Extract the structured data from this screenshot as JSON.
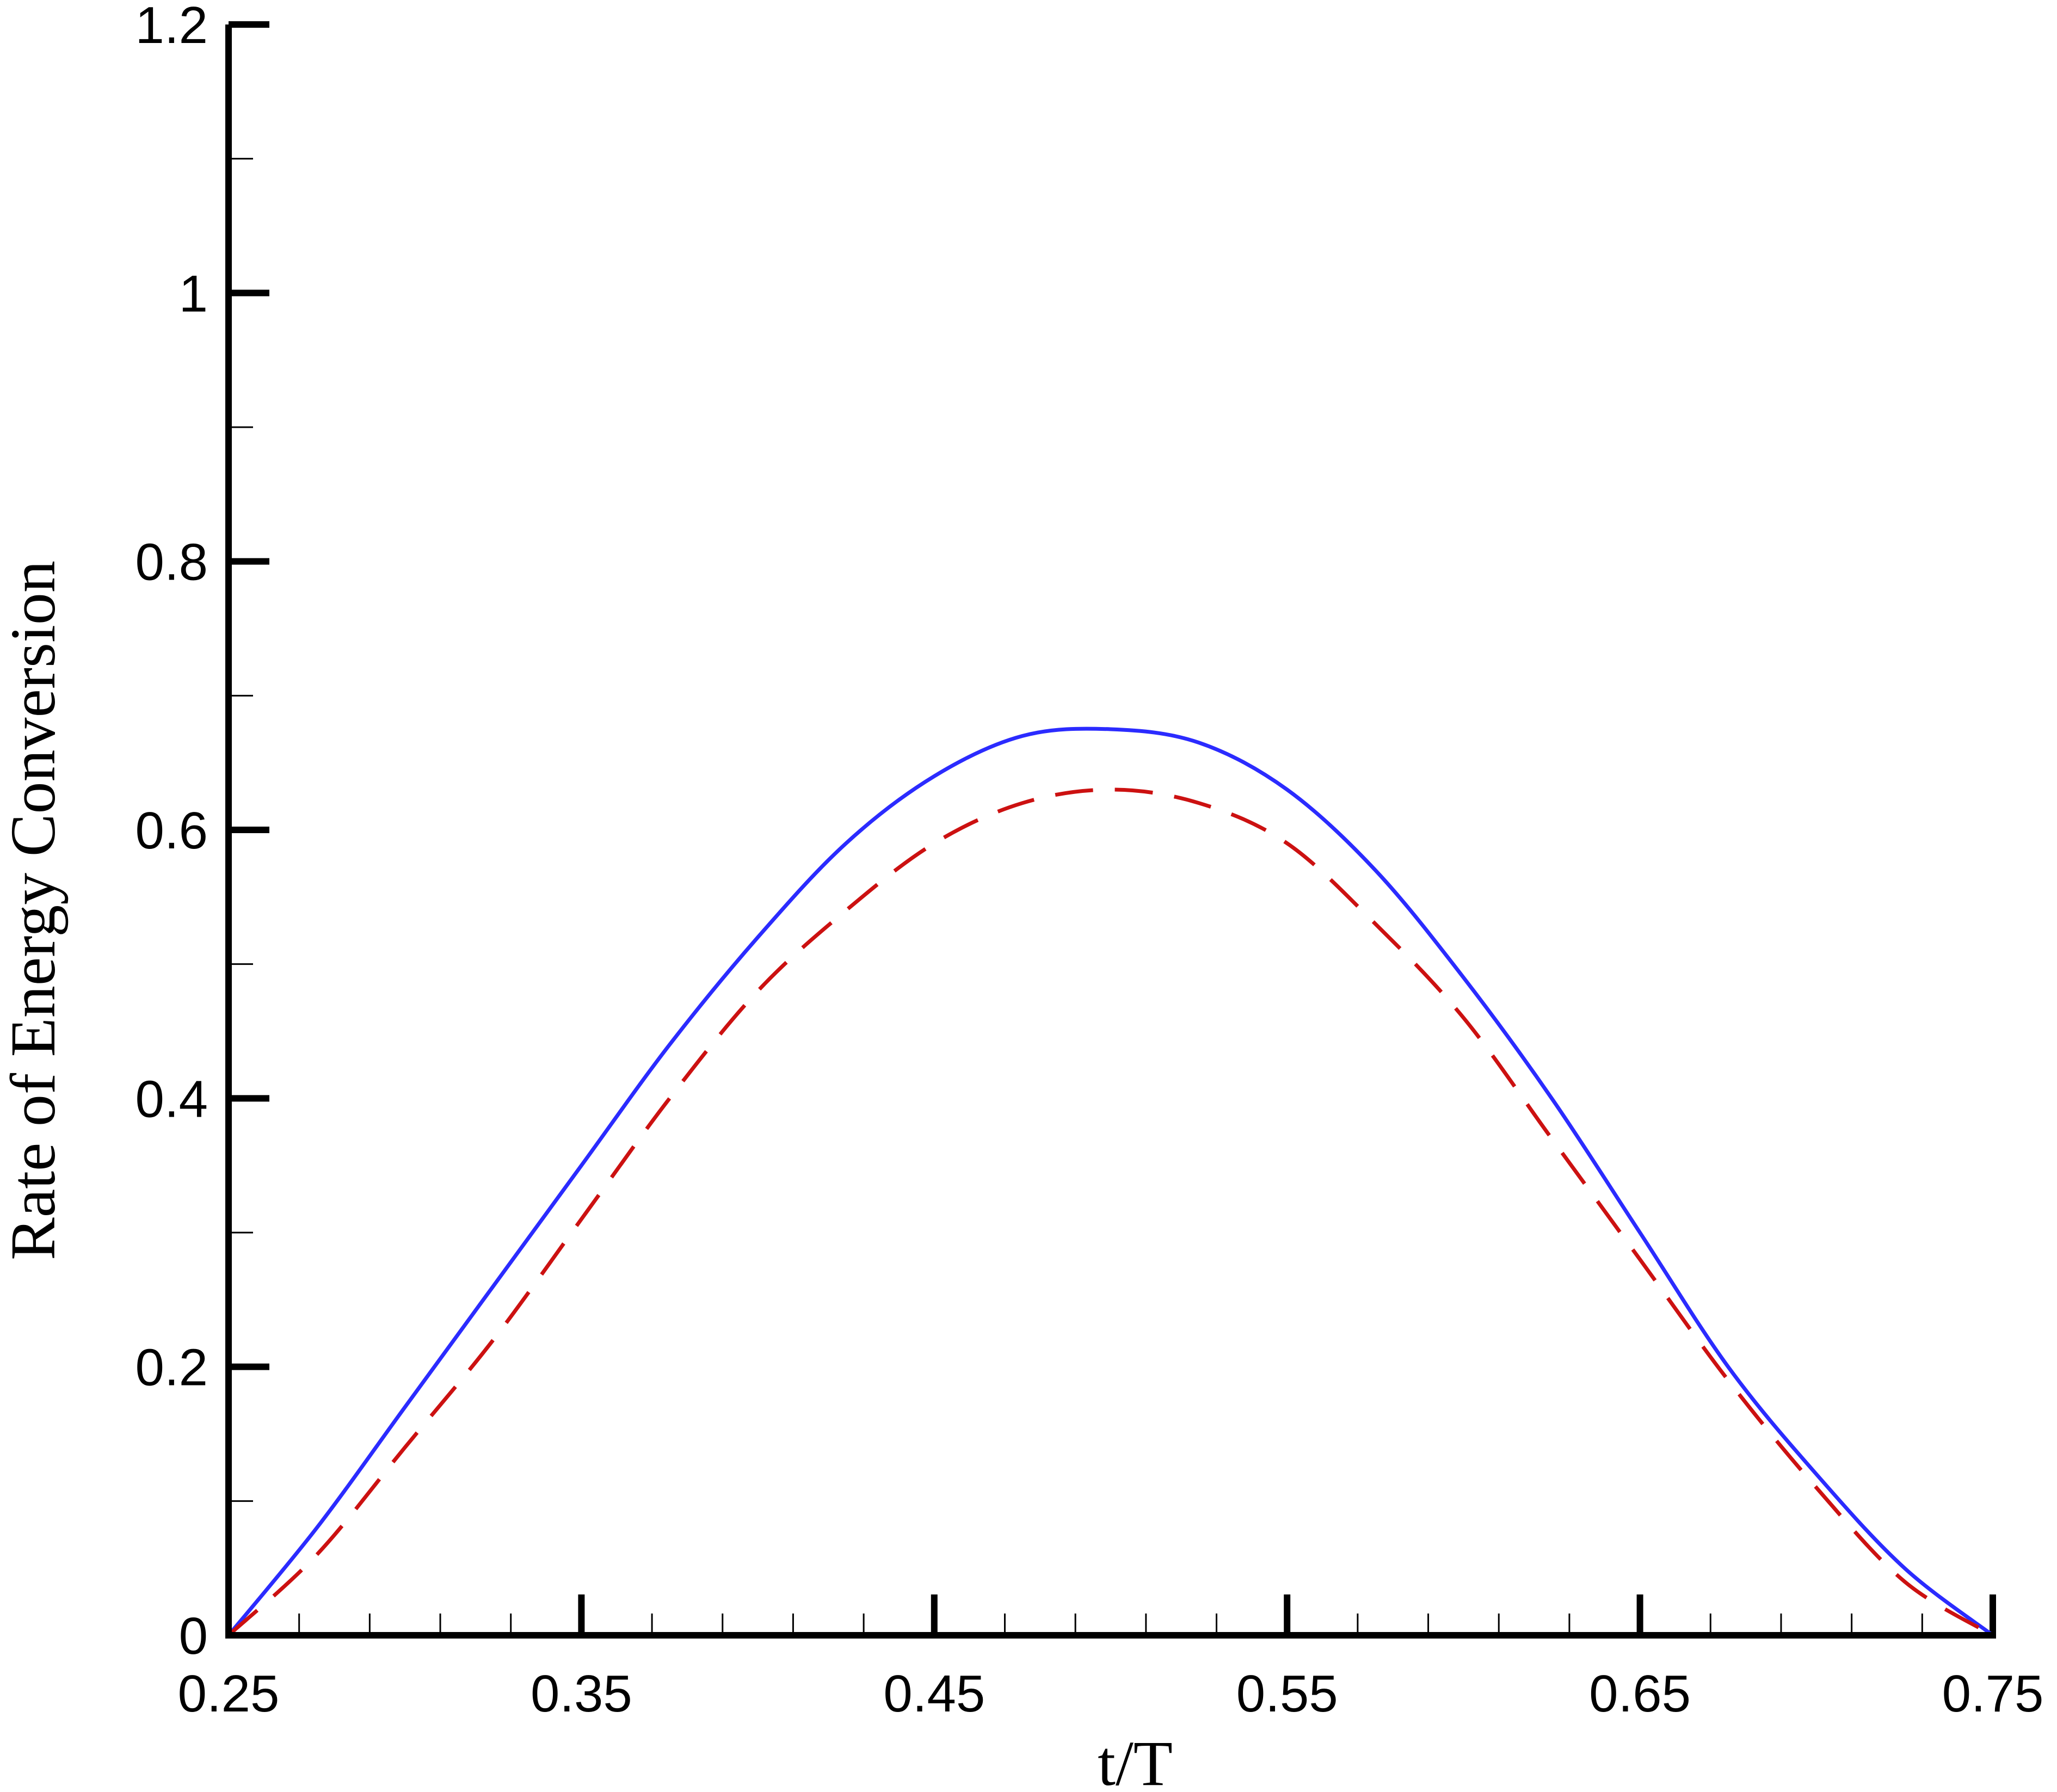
{
  "chart_data": {
    "type": "line",
    "title": "",
    "xlabel": "t/T",
    "ylabel": "Rate of Energy Conversion",
    "xlim": [
      0.25,
      0.75
    ],
    "ylim": [
      0,
      1.2
    ],
    "xticks": [
      "0.25",
      "0.35",
      "0.45",
      "0.55",
      "0.65",
      "0.75"
    ],
    "yticks": [
      "0",
      "0.2",
      "0.4",
      "0.6",
      "0.8",
      "1",
      "1.2"
    ],
    "grid": false,
    "legend": "none",
    "series": [
      {
        "style": "solid",
        "color": "#2b2bff",
        "x": [
          0.25,
          0.275,
          0.3,
          0.325,
          0.35,
          0.375,
          0.4,
          0.425,
          0.45,
          0.475,
          0.5,
          0.525,
          0.55,
          0.575,
          0.6,
          0.625,
          0.65,
          0.675,
          0.7,
          0.725,
          0.75
        ],
        "y": [
          0.0,
          0.08,
          0.17,
          0.26,
          0.35,
          0.44,
          0.52,
          0.59,
          0.64,
          0.67,
          0.675,
          0.665,
          0.63,
          0.57,
          0.49,
          0.4,
          0.3,
          0.2,
          0.12,
          0.05,
          0.0
        ]
      },
      {
        "style": "dashed",
        "color": "#cc1111",
        "x": [
          0.25,
          0.275,
          0.3,
          0.325,
          0.35,
          0.375,
          0.4,
          0.425,
          0.45,
          0.475,
          0.5,
          0.525,
          0.55,
          0.575,
          0.6,
          0.625,
          0.65,
          0.675,
          0.7,
          0.725,
          0.75
        ],
        "y": [
          0.0,
          0.06,
          0.14,
          0.22,
          0.31,
          0.4,
          0.48,
          0.54,
          0.59,
          0.62,
          0.63,
          0.62,
          0.59,
          0.53,
          0.46,
          0.37,
          0.28,
          0.19,
          0.11,
          0.04,
          0.0
        ]
      }
    ]
  }
}
